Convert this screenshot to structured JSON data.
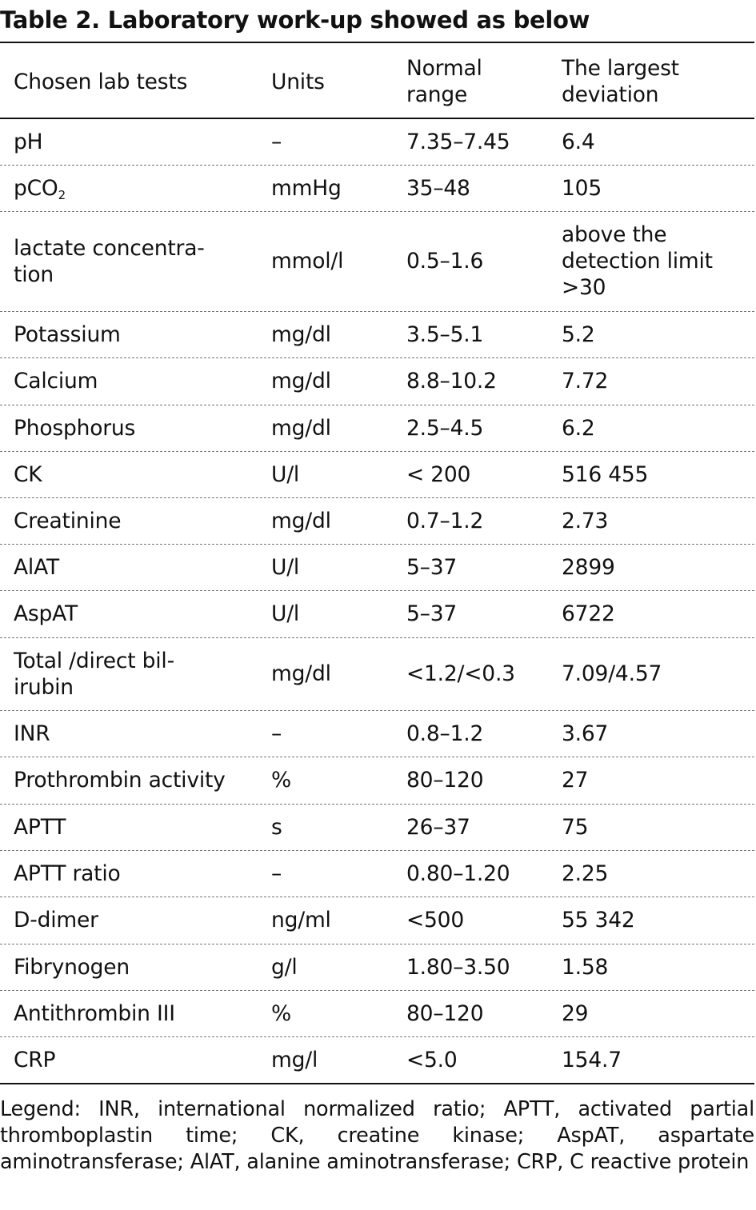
{
  "title": "Table 2. Laboratory work-up showed as below",
  "headers": [
    "Chosen lab tests",
    "Units",
    "Normal range",
    "The largest deviation"
  ],
  "rows": [
    {
      "test": "pH",
      "units": "–",
      "normal": "7.35–7.45",
      "deviation": "6.4"
    },
    {
      "test": "pCO",
      "test_sub": "2",
      "units": "mmHg",
      "normal": "35–48",
      "deviation": "105"
    },
    {
      "test": "lactate concentra-tion",
      "units": "mmol/l",
      "normal": "0.5–1.6",
      "deviation": "above the detection limit >30"
    },
    {
      "test": "Potassium",
      "units": "mg/dl",
      "normal": "3.5–5.1",
      "deviation": "5.2"
    },
    {
      "test": "Calcium",
      "units": "mg/dl",
      "normal": "8.8–10.2",
      "deviation": "7.72"
    },
    {
      "test": "Phosphorus",
      "units": "mg/dl",
      "normal": "2.5–4.5",
      "deviation": "6.2"
    },
    {
      "test": "CK",
      "units": "U/l",
      "normal": "< 200",
      "deviation": "516 455"
    },
    {
      "test": "Creatinine",
      "units": "mg/dl",
      "normal": "0.7–1.2",
      "deviation": "2.73"
    },
    {
      "test": "AlAT",
      "units": "U/l",
      "normal": "5–37",
      "deviation": "2899"
    },
    {
      "test": "AspAT",
      "units": "U/l",
      "normal": "5–37",
      "deviation": "6722"
    },
    {
      "test": "Total /direct bil-irubin",
      "units": "mg/dl",
      "normal": "<1.2/<0.3",
      "deviation": "7.09/4.57"
    },
    {
      "test": "INR",
      "units": "–",
      "normal": "0.8–1.2",
      "deviation": "3.67"
    },
    {
      "test": "Prothrombin activity",
      "units": "%",
      "normal": "80–120",
      "deviation": "27"
    },
    {
      "test": "APTT",
      "units": "s",
      "normal": "26–37",
      "deviation": "75"
    },
    {
      "test": "APTT ratio",
      "units": "–",
      "normal": "0.80–1.20",
      "deviation": "2.25"
    },
    {
      "test": "D-dimer",
      "units": "ng/ml",
      "normal": "<500",
      "deviation": "55 342"
    },
    {
      "test": "Fibrynogen",
      "units": "g/l",
      "normal": "1.80–3.50",
      "deviation": "1.58"
    },
    {
      "test": "Antithrombin III",
      "units": "%",
      "normal": "80–120",
      "deviation": "29"
    },
    {
      "test": "CRP",
      "units": "mg/l",
      "normal": "<5.0",
      "deviation": "154.7"
    }
  ],
  "legend": "Legend: INR, international normalized ratio; APTT, activated partial thromboplastin time; CK, creatine kinase; AspAT, aspartate aminotransferase; AlAT, alanine aminotransferase; CRP, C reactive protein"
}
